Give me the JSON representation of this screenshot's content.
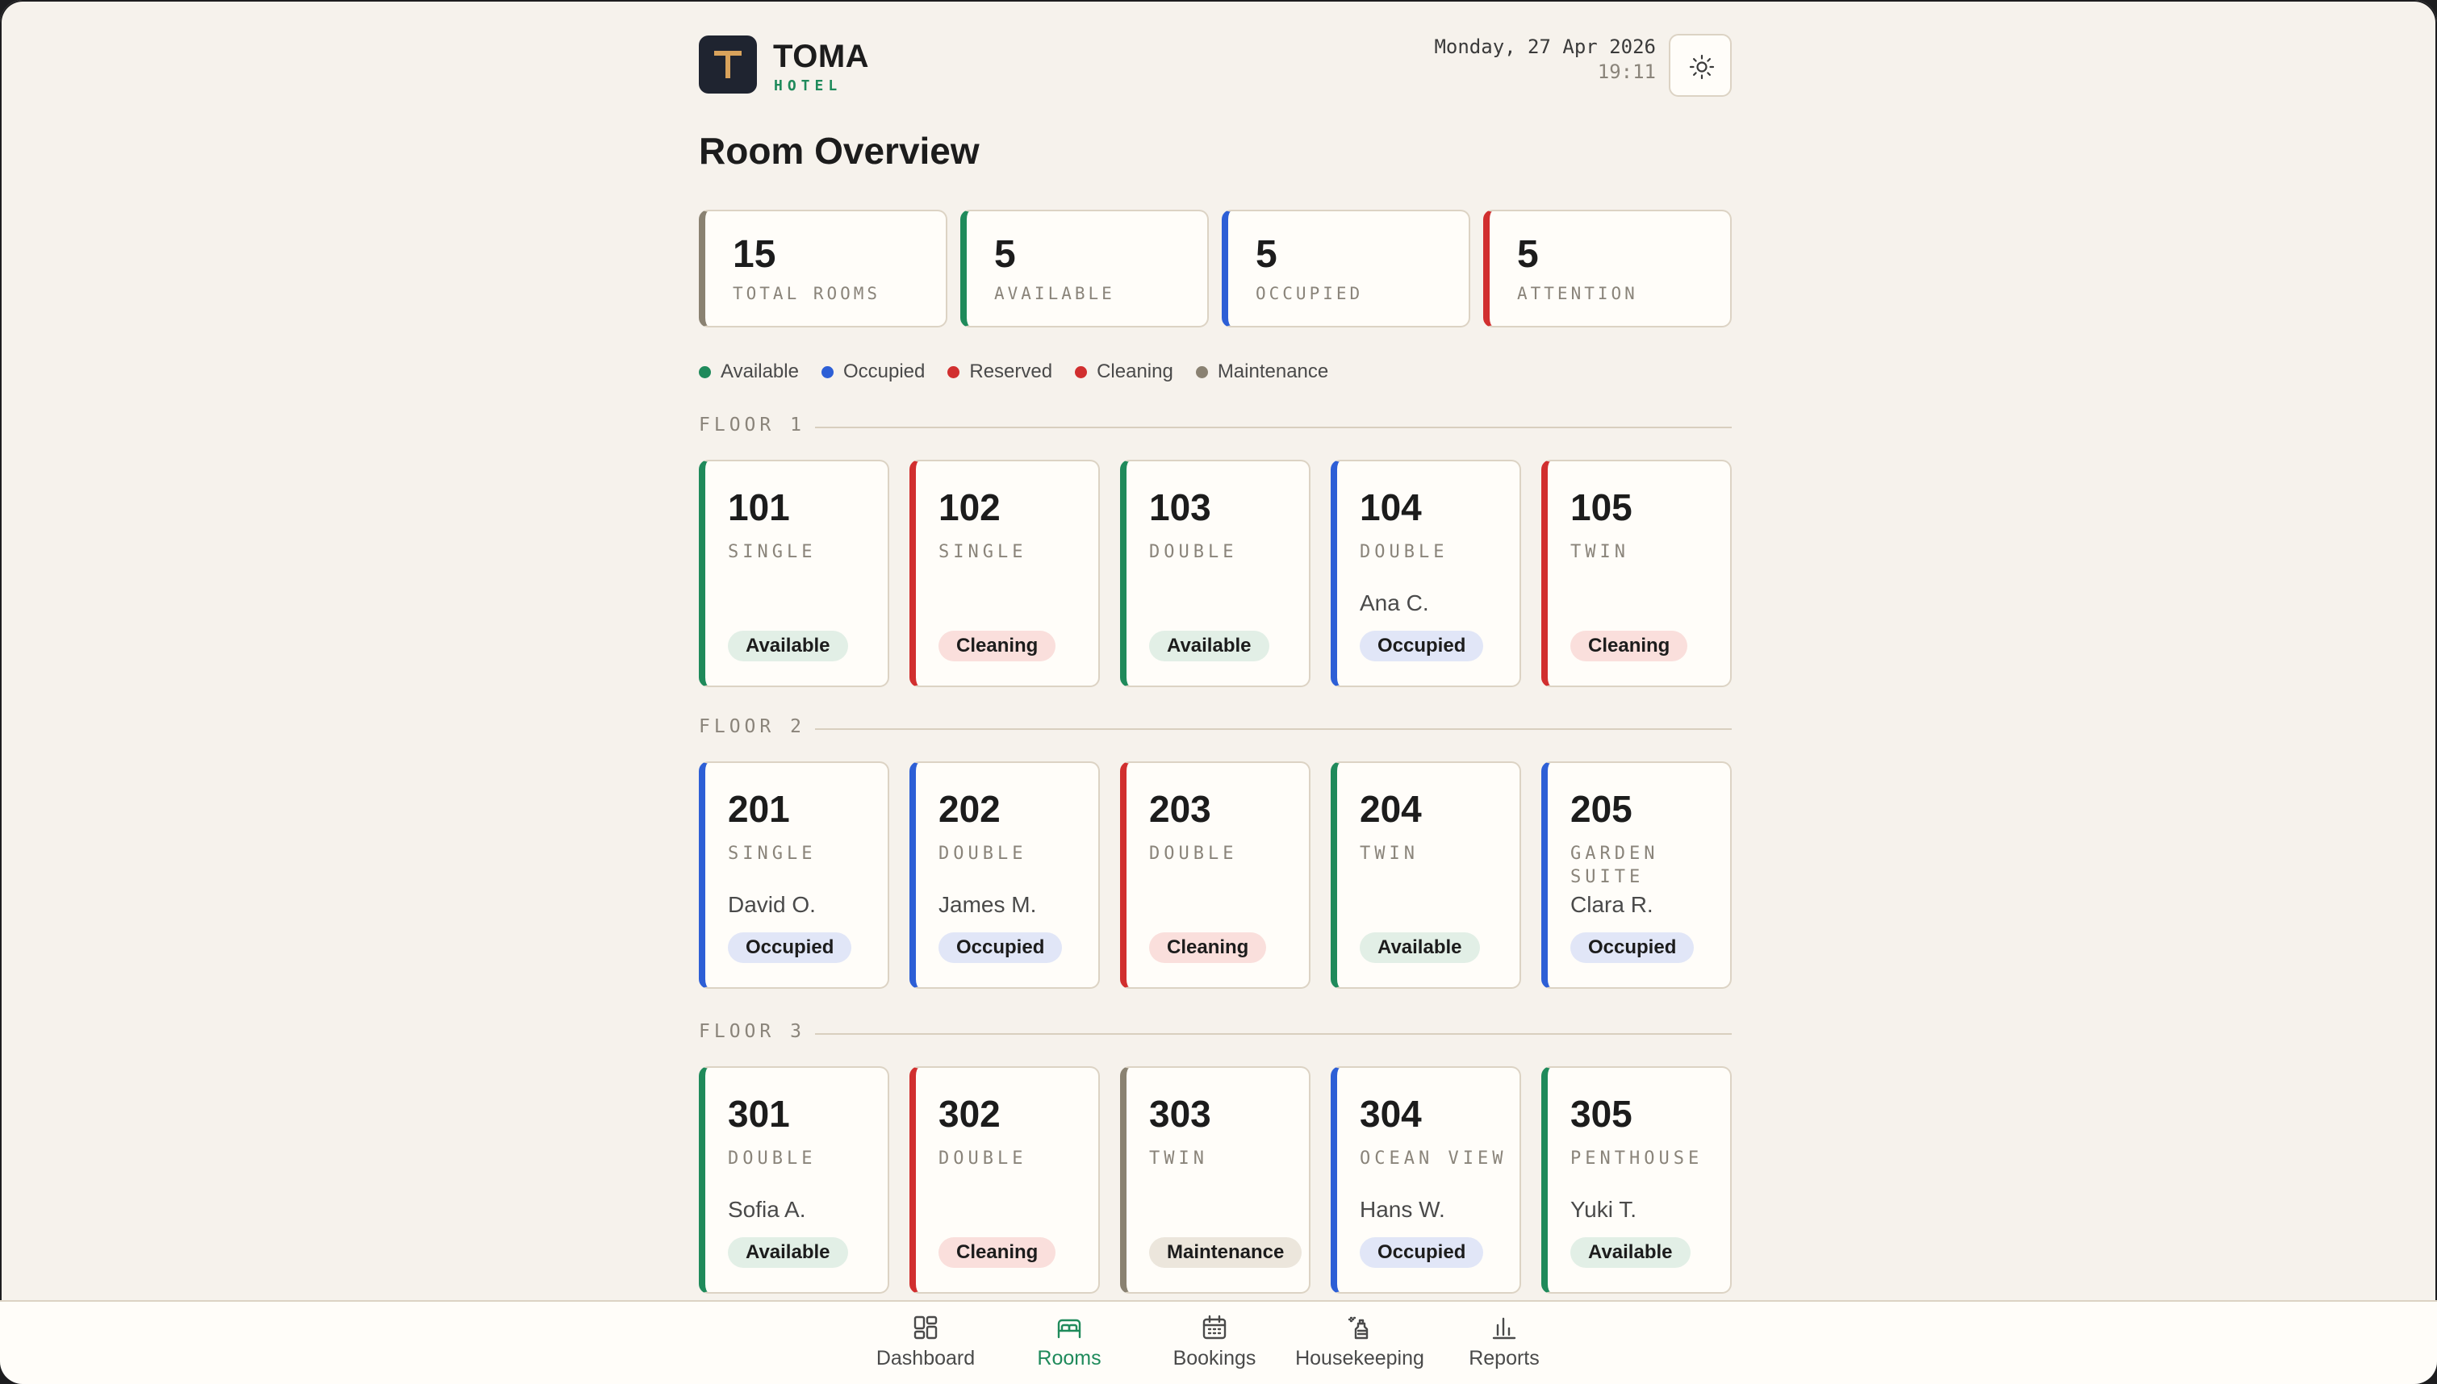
{
  "header": {
    "brand_name": "TOMA",
    "brand_sub": "HOTEL",
    "date": "Monday, 27 Apr 2026",
    "time": "19:11",
    "theme_toggle_icon": "sun-icon"
  },
  "page_title": "Room Overview",
  "stats": [
    {
      "value": "15",
      "label": "TOTAL ROOMS",
      "color": "#8a8272"
    },
    {
      "value": "5",
      "label": "AVAILABLE",
      "color": "#1f8a5b"
    },
    {
      "value": "5",
      "label": "OCCUPIED",
      "color": "#2d5fd6"
    },
    {
      "value": "5",
      "label": "ATTENTION",
      "color": "#d12f2f"
    }
  ],
  "legend": [
    {
      "label": "Available",
      "color": "#1f8a5b"
    },
    {
      "label": "Occupied",
      "color": "#2d5fd6"
    },
    {
      "label": "Reserved",
      "color": "#d12f2f"
    },
    {
      "label": "Cleaning",
      "color": "#d12f2f"
    },
    {
      "label": "Maintenance",
      "color": "#8a8272"
    }
  ],
  "status_colors": {
    "Available": {
      "accent": "#1f8a5b",
      "badge_bg": "#e2efe6"
    },
    "Occupied": {
      "accent": "#2d5fd6",
      "badge_bg": "#e1e6f7"
    },
    "Cleaning": {
      "accent": "#d12f2f",
      "badge_bg": "#fadfdc"
    },
    "Maintenance": {
      "accent": "#8a8272",
      "badge_bg": "#ece6dc"
    }
  },
  "floors": [
    {
      "label": "FLOOR 1",
      "rooms": [
        {
          "number": "101",
          "type": "SINGLE",
          "guest": "",
          "status": "Available"
        },
        {
          "number": "102",
          "type": "SINGLE",
          "guest": "",
          "status": "Cleaning"
        },
        {
          "number": "103",
          "type": "DOUBLE",
          "guest": "",
          "status": "Available"
        },
        {
          "number": "104",
          "type": "DOUBLE",
          "guest": "Ana C.",
          "status": "Occupied"
        },
        {
          "number": "105",
          "type": "TWIN",
          "guest": "",
          "status": "Cleaning"
        }
      ]
    },
    {
      "label": "FLOOR 2",
      "rooms": [
        {
          "number": "201",
          "type": "SINGLE",
          "guest": "David O.",
          "status": "Occupied"
        },
        {
          "number": "202",
          "type": "DOUBLE",
          "guest": "James M.",
          "status": "Occupied"
        },
        {
          "number": "203",
          "type": "DOUBLE",
          "guest": "",
          "status": "Cleaning"
        },
        {
          "number": "204",
          "type": "TWIN",
          "guest": "",
          "status": "Available"
        },
        {
          "number": "205",
          "type": "GARDEN SUITE",
          "guest": "Clara R.",
          "status": "Occupied"
        }
      ]
    },
    {
      "label": "FLOOR 3",
      "rooms": [
        {
          "number": "301",
          "type": "DOUBLE",
          "guest": "Sofia A.",
          "status": "Available"
        },
        {
          "number": "302",
          "type": "DOUBLE",
          "guest": "",
          "status": "Cleaning"
        },
        {
          "number": "303",
          "type": "TWIN",
          "guest": "",
          "status": "Maintenance"
        },
        {
          "number": "304",
          "type": "OCEAN VIEW",
          "guest": "Hans W.",
          "status": "Occupied"
        },
        {
          "number": "305",
          "type": "PENTHOUSE",
          "guest": "Yuki T.",
          "status": "Available"
        }
      ]
    }
  ],
  "nav": [
    {
      "label": "Dashboard",
      "icon": "dashboard-icon",
      "active": false
    },
    {
      "label": "Rooms",
      "icon": "bed-icon",
      "active": true
    },
    {
      "label": "Bookings",
      "icon": "calendar-icon",
      "active": false
    },
    {
      "label": "Housekeeping",
      "icon": "spray-bottle-icon",
      "active": false
    },
    {
      "label": "Reports",
      "icon": "bar-chart-icon",
      "active": false
    }
  ]
}
